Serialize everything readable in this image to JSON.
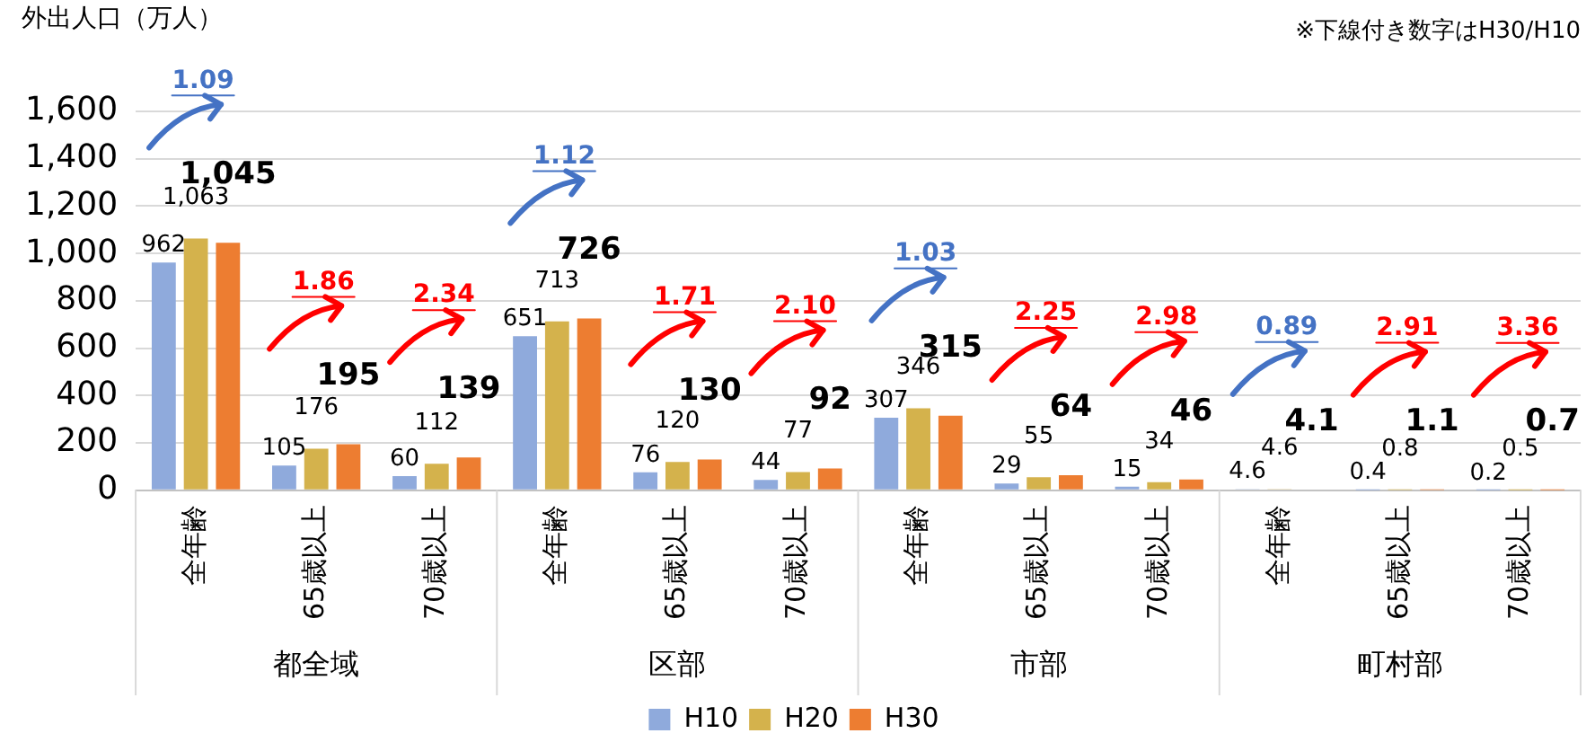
{
  "chart_data": {
    "type": "bar",
    "ylabel": "外出人口（万人）",
    "categories": [
      "全年齢",
      "65歳以上",
      "70歳以上",
      "全年齢",
      "65歳以上",
      "70歳以上",
      "全年齢",
      "65歳以上",
      "70歳以上",
      "全年齢",
      "65歳以上",
      "70歳以上"
    ],
    "series": [
      {
        "name": "H10",
        "color": "#8faadc",
        "values": [
          962,
          105,
          60,
          651,
          76,
          44,
          307,
          29,
          15,
          4.6,
          0.4,
          0.2
        ],
        "value_labels": [
          "962",
          "105",
          "60",
          "651",
          "76",
          "44",
          "307",
          "29",
          "15",
          "4.6",
          "0.4",
          "0.2"
        ]
      },
      {
        "name": "H20",
        "color": "#d4b24c",
        "values": [
          1063,
          176,
          112,
          713,
          120,
          77,
          346,
          55,
          34,
          4.6,
          0.8,
          0.5
        ],
        "value_labels": [
          "1,063",
          "176",
          "112",
          "713",
          "120",
          "77",
          "346",
          "55",
          "34",
          "4.6",
          "0.8",
          "0.5"
        ]
      },
      {
        "name": "H30",
        "color": "#ed7d31",
        "values": [
          1045,
          195,
          139,
          726,
          130,
          92,
          315,
          64,
          46,
          4.1,
          1.1,
          0.7
        ],
        "value_labels": [
          "1,045",
          "195",
          "139",
          "726",
          "130",
          "92",
          "315",
          "64",
          "46",
          "4.1",
          "1.1",
          "0.7"
        ]
      }
    ],
    "ylim": [
      0,
      1600
    ],
    "yticks": [
      0,
      {
        "value": 200,
        "label": "200"
      },
      {
        "value": 400,
        "label": "400"
      },
      {
        "value": 600,
        "label": "600"
      },
      {
        "value": 800,
        "label": "800"
      },
      {
        "value": 1000,
        "label": "1,000"
      },
      {
        "value": 1200,
        "label": "1,200"
      },
      {
        "value": 1400,
        "label": "1,400"
      },
      {
        "value": 1600,
        "label": "1,600"
      }
    ],
    "grid": "y",
    "legend": "bottom",
    "annotations": [
      "※下線付き数字はH30/H10",
      "都全域",
      "区部",
      "市部",
      "町村部",
      "1.09",
      "1.86",
      "2.34",
      "1.12",
      "1.71",
      "2.10",
      "1.03",
      "2.25",
      "2.98",
      "0.89",
      "2.91",
      "3.36"
    ]
  }
}
